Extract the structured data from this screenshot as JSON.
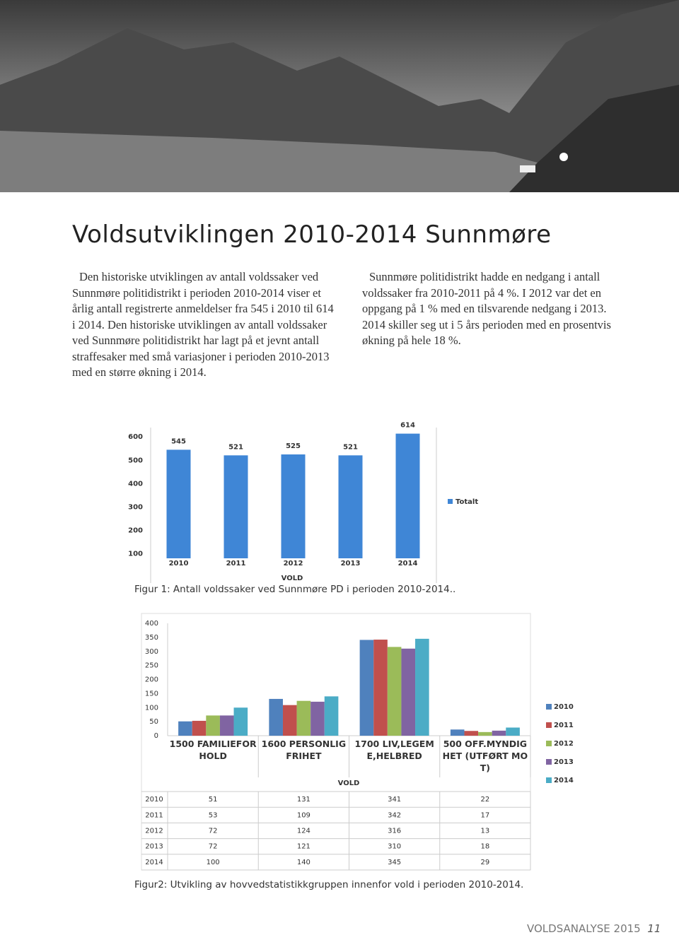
{
  "title": "Voldsutviklingen 2010-2014 Sunnmøre",
  "text": {
    "left": "Den historiske utviklingen av antall voldssaker ved Sunnmøre politidistrikt i perioden 2010-2014 viser et årlig antall registrerte anmeldelser fra 545 i 2010 til 614 i 2014. Den historiske utviklingen av antall voldssaker ved Sunnmøre politidistrikt har lagt på et jevnt antall straffesaker med små variasjoner i perioden 2010-2013 med en større økning i 2014.",
    "right": "Sunnmøre politidistrikt hadde en nedgang i antall voldssaker fra 2010-2011 på 4 %. I 2012 var det en oppgang på 1 % med en tilsvarende nedgang i 2013. 2014 skiller seg ut i 5 års perioden med en prosentvis økning på hele 18 %."
  },
  "chart_data": [
    {
      "type": "bar",
      "caption": "Figur 1: Antall voldssaker ved Sunnmøre PD i perioden 2010-2014..",
      "x_label": "VOLD",
      "categories": [
        "2010",
        "2011",
        "2012",
        "2013",
        "2014"
      ],
      "series": [
        {
          "name": "Totalt",
          "color": "#3f86d6",
          "values": [
            545,
            521,
            525,
            521,
            614
          ]
        }
      ],
      "ylim": [
        80,
        640
      ],
      "yticks": [
        100,
        200,
        300,
        400,
        500,
        600
      ],
      "legend": "right"
    },
    {
      "type": "grouped_bar",
      "caption": "Figur2: Utvikling av hovvedstatistikkgruppen innenfor vold i perioden 2010-2014.",
      "x_label": "VOLD",
      "categories": [
        "1500 FAMILIEFORHOLD",
        "1600 PERSONLIG FRIHET",
        "1700 LIV,LEGEME,HELBRED",
        "500 OFF.MYNDIGHET (UTFØRT MOT)"
      ],
      "series": [
        {
          "name": "2010",
          "color": "#4f81bd",
          "values": [
            51,
            131,
            341,
            22
          ]
        },
        {
          "name": "2011",
          "color": "#c0504d",
          "values": [
            53,
            109,
            342,
            17
          ]
        },
        {
          "name": "2012",
          "color": "#9bbb59",
          "values": [
            72,
            124,
            316,
            13
          ]
        },
        {
          "name": "2013",
          "color": "#8064a2",
          "values": [
            72,
            121,
            310,
            18
          ]
        },
        {
          "name": "2014",
          "color": "#4bacc6",
          "values": [
            100,
            140,
            345,
            29
          ]
        }
      ],
      "ylim": [
        0,
        400
      ],
      "yticks": [
        0,
        50,
        100,
        150,
        200,
        250,
        300,
        350,
        400
      ],
      "legend": "right",
      "data_table": true
    }
  ],
  "footer": {
    "publication": "VOLDSANALYSE 2015",
    "page": "11"
  }
}
